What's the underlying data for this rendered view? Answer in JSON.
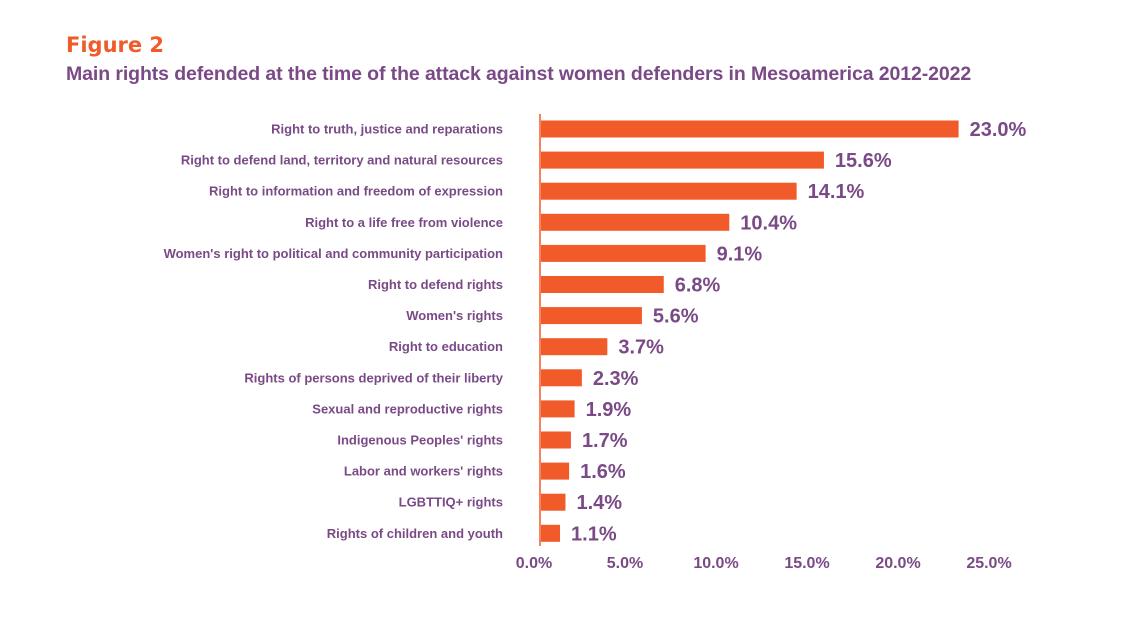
{
  "figure_label": "Figure 2",
  "colors": {
    "bar": "#f15a29",
    "text": "#7a4a86",
    "figure_label": "#f15a29",
    "axis": "#f15a29"
  },
  "chart_data": {
    "type": "bar",
    "orientation": "horizontal",
    "title": "Main rights defended at the time of the attack against women defenders in Mesoamerica 2012-2022",
    "categories": [
      "Right to truth, justice and reparations",
      "Right to defend land, territory and natural resources",
      "Right to information and freedom of expression",
      "Right to a life free from violence",
      "Women's right to political and community participation",
      "Right to defend rights",
      "Women's rights",
      "Right to education",
      "Rights of persons deprived of their liberty",
      "Sexual and reproductive rights",
      "Indigenous Peoples' rights",
      "Labor and workers' rights",
      "LGBTTIQ+ rights",
      "Rights of children and youth"
    ],
    "values": [
      23.0,
      15.6,
      14.1,
      10.4,
      9.1,
      6.8,
      5.6,
      3.7,
      2.3,
      1.9,
      1.7,
      1.6,
      1.4,
      1.1
    ],
    "data_labels": [
      "23.0%",
      "15.6%",
      "14.1%",
      "10.4%",
      "9.1%",
      "6.8%",
      "5.6%",
      "3.7%",
      "2.3%",
      "1.9%",
      "1.7%",
      "1.6%",
      "1.4%",
      "1.1%"
    ],
    "xlim": [
      0,
      25
    ],
    "xticks": [
      0,
      5,
      10,
      15,
      20,
      25
    ],
    "xtick_labels": [
      "0.0%",
      "5.0%",
      "10.0%",
      "15.0%",
      "20.0%",
      "25.0%"
    ],
    "xlabel": "",
    "ylabel": "",
    "grid": false,
    "legend": "none"
  }
}
